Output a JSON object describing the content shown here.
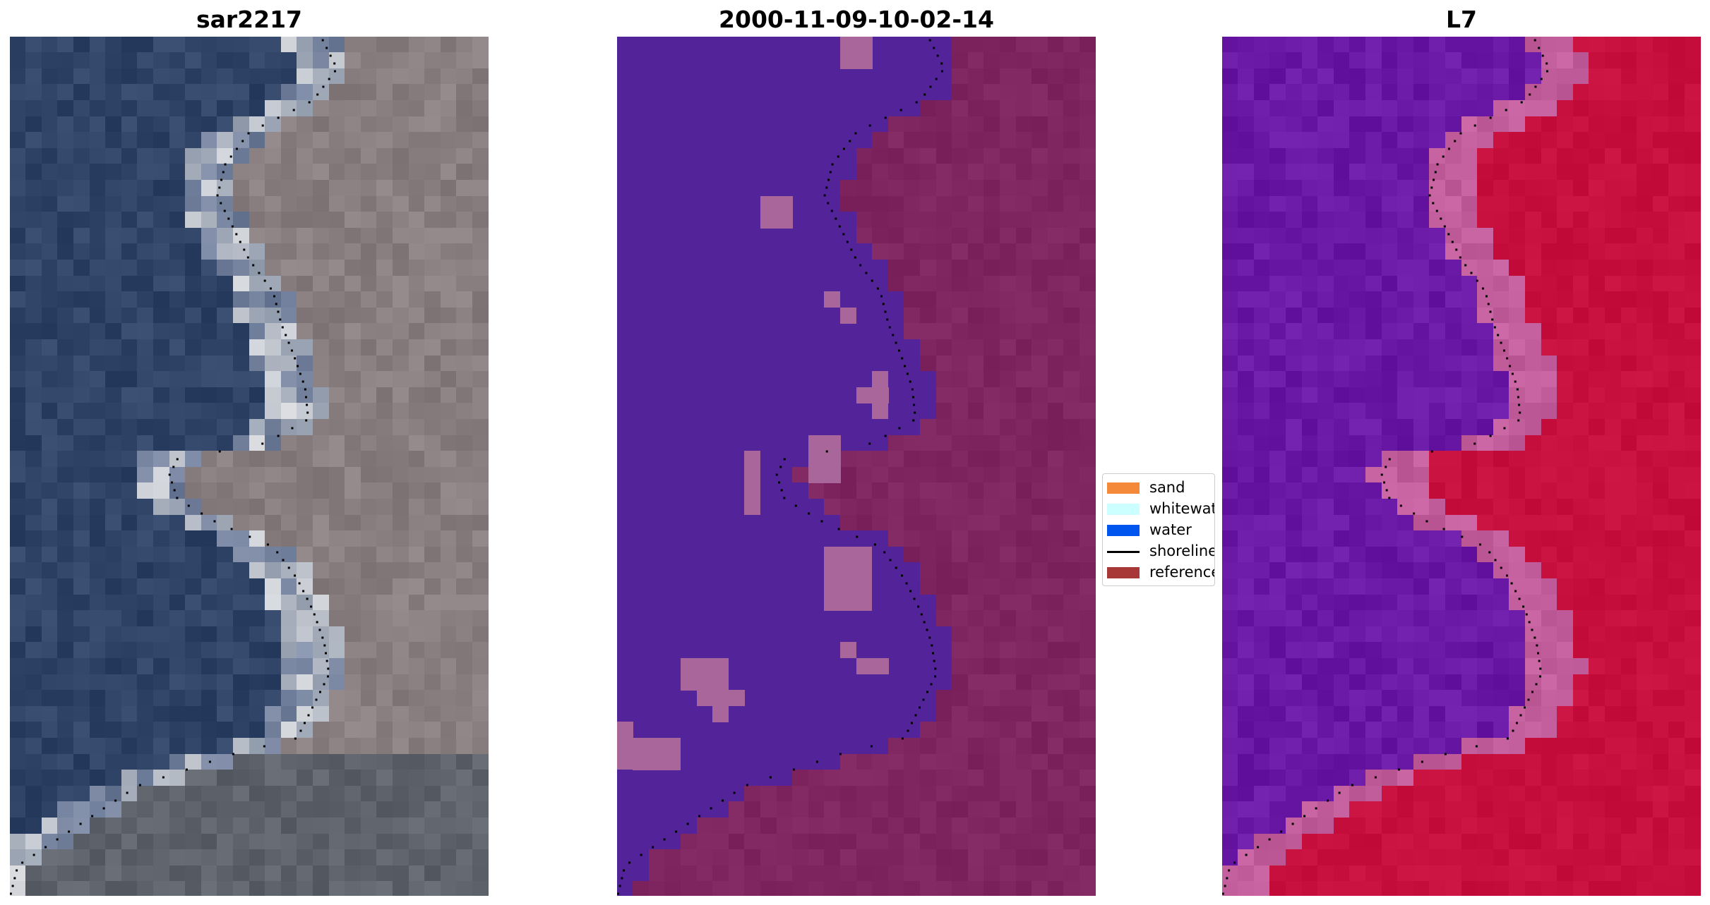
{
  "panels": [
    {
      "title": "sar2217"
    },
    {
      "title": "2000-11-09-10-02-14"
    },
    {
      "title": "L7"
    }
  ],
  "legend": {
    "items": [
      {
        "label": "sand",
        "color": "#f5893a",
        "kind": "patch"
      },
      {
        "label": "whitewater",
        "color": "#ccffff",
        "kind": "patch"
      },
      {
        "label": "water",
        "color": "#0055ee",
        "kind": "patch"
      },
      {
        "label": "shoreline",
        "color": "#000000",
        "kind": "line"
      },
      {
        "label": "reference",
        "color": "#a83838",
        "kind": "patch"
      }
    ]
  },
  "colors": {
    "water_class": "#53239a",
    "land_class": "#7f2660",
    "wet_class": "#a8669b",
    "rgb_water": "#2f4466",
    "rgb_land": "#8a7f80",
    "rgb_foam": "#f2f2f2",
    "ndwi_water": "#6a18a6",
    "ndwi_land": "#c8103e",
    "ndwi_edge": "#c25f9c"
  }
}
